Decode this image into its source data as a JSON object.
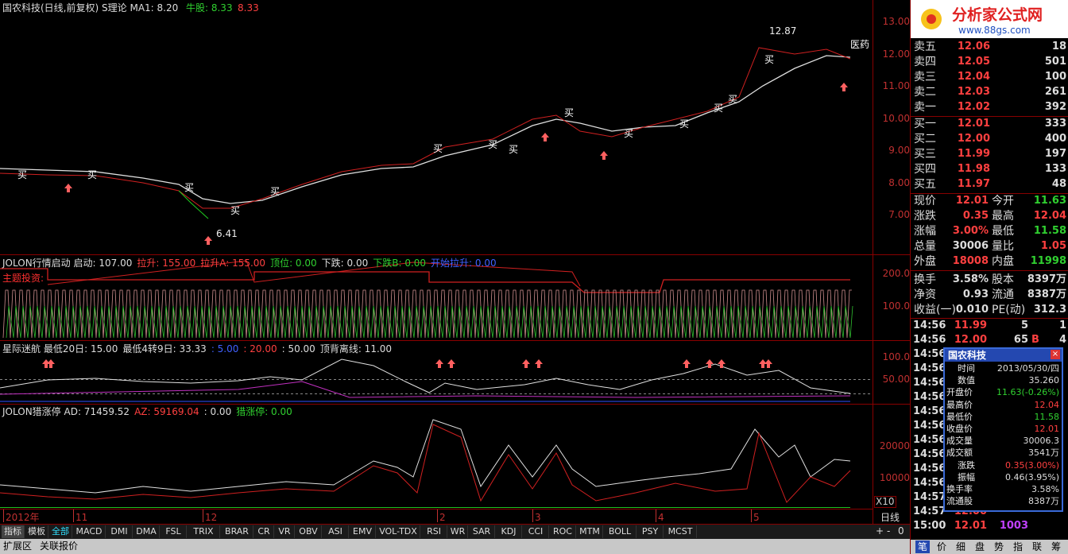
{
  "main_pane": {
    "title": "国农科技(日线,前复权)",
    "indicator": "S理论",
    "ma1": "MA1: 8.20",
    "bull": "牛股: 8.33",
    "bull2": "8.33",
    "yticks": [
      "13.00",
      "12.00",
      "11.00",
      "10.00",
      "9.00",
      "8.00",
      "7.00"
    ],
    "high": "12.87",
    "low": "6.41",
    "sector": "医药",
    "buy": "买"
  },
  "pane2": {
    "title": "JOLON行情启动",
    "items": [
      "启动: 107.00",
      "拉升: 155.00",
      "拉升A: 155.00",
      "顶位: 0.00",
      "下跌: 0.00",
      "下跌B: 0.00",
      "开始拉升: 0.00"
    ],
    "label": "主题投资:",
    "yticks": [
      "200.0",
      "100.0"
    ]
  },
  "pane3": {
    "title": "星际迷航",
    "items": [
      "最低20日: 15.00",
      "最低4转9日: 33.33",
      ": 5.00",
      ": 20.00",
      ": 50.00",
      "顶背离线: 11.00"
    ],
    "yticks": [
      "100.0",
      "50.00"
    ]
  },
  "pane4": {
    "title": "JOLON猎涨停",
    "items": [
      "AD: 71459.52",
      "AZ: 59169.04",
      ": 0.00",
      "猎涨停: 0.00"
    ],
    "yticks": [
      "20000",
      "10000"
    ],
    "scale": "X10"
  },
  "x_axis": {
    "labels": [
      "2012年",
      "11",
      "12",
      "2",
      "3",
      "4",
      "5"
    ],
    "period": "日线"
  },
  "tabs": [
    "指标",
    "模板",
    "全部",
    "MACD",
    "DMI",
    "DMA",
    "FSL",
    "TRIX",
    "BRAR",
    "CR",
    "VR",
    "OBV",
    "ASI",
    "EMV",
    "VOL-TDX",
    "RSI",
    "WR",
    "SAR",
    "KDJ",
    "CCI",
    "ROC",
    "MTM",
    "BOLL",
    "PSY",
    "MCST"
  ],
  "controls": [
    "+",
    "-",
    "0"
  ],
  "footer": [
    "扩展区",
    "关联报价"
  ],
  "logo": {
    "text": "分析家公式网",
    "url": "www.88gs.com"
  },
  "order_book": [
    [
      "卖五",
      "12.06",
      "18"
    ],
    [
      "卖四",
      "12.05",
      "501"
    ],
    [
      "卖三",
      "12.04",
      "100"
    ],
    [
      "卖二",
      "12.03",
      "261"
    ],
    [
      "卖一",
      "12.02",
      "392"
    ],
    [
      "买一",
      "12.01",
      "333"
    ],
    [
      "买二",
      "12.00",
      "400"
    ],
    [
      "买三",
      "11.99",
      "197"
    ],
    [
      "买四",
      "11.98",
      "133"
    ],
    [
      "买五",
      "11.97",
      "48"
    ]
  ],
  "stats": [
    [
      "现价",
      "12.01",
      "今开",
      "11.63"
    ],
    [
      "涨跌",
      "0.35",
      "最高",
      "12.04"
    ],
    [
      "涨幅",
      "3.00%",
      "最低",
      "11.58"
    ],
    [
      "总量",
      "30006",
      "量比",
      "1.05"
    ],
    [
      "外盘",
      "18008",
      "内盘",
      "11998"
    ],
    [
      "换手",
      "3.58%",
      "股本",
      "8397万"
    ],
    [
      "净资",
      "0.93",
      "流通",
      "8387万"
    ],
    [
      "收益(一)",
      "0.010",
      "PE(动)",
      "312.3"
    ]
  ],
  "ticks": [
    [
      "14:56",
      "11.99",
      "5",
      "",
      "1"
    ],
    [
      "14:56",
      "12.00",
      "65",
      "B",
      "4"
    ],
    [
      "14:56"
    ],
    [
      "14:56"
    ],
    [
      "14:56"
    ],
    [
      "14:56"
    ],
    [
      "14:56"
    ],
    [
      "14:56"
    ],
    [
      "14:56"
    ],
    [
      "14:56"
    ],
    [
      "14:56"
    ],
    [
      "14:56"
    ],
    [
      "14:57"
    ],
    [
      "14:57",
      "12.00"
    ],
    [
      "15:00",
      "12.01",
      "1003"
    ]
  ],
  "popup": {
    "title": "国农科技",
    "rows": [
      [
        "时间",
        "2013/05/30/四"
      ],
      [
        "数值",
        "35.260"
      ],
      [
        "开盘价",
        "11.63(-0.26%)"
      ],
      [
        "最高价",
        "12.04"
      ],
      [
        "最低价",
        "11.58"
      ],
      [
        "收盘价",
        "12.01"
      ],
      [
        "成交量",
        "30006.3"
      ],
      [
        "成交额",
        "3541万"
      ],
      [
        "涨跌",
        "0.35(3.00%)"
      ],
      [
        "振幅",
        "0.46(3.95%)"
      ],
      [
        "换手率",
        "3.58%"
      ],
      [
        "流通股",
        "8387万"
      ]
    ]
  },
  "bottom_nav": [
    "笔",
    "价",
    "细",
    "盘",
    "势",
    "指",
    "联",
    "筹"
  ]
}
